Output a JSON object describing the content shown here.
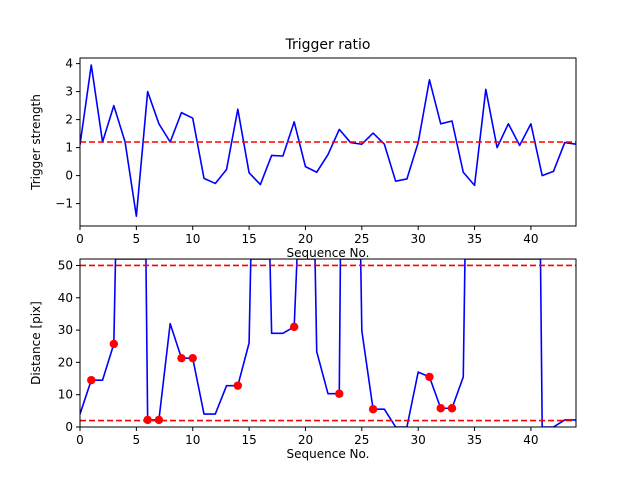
{
  "chart_data": [
    {
      "type": "line",
      "title": "Trigger ratio",
      "xlabel": "Sequence No.",
      "ylabel": "Trigger strength",
      "xlim": [
        0,
        44
      ],
      "ylim": [
        -1.8,
        4.2
      ],
      "xticks": [
        0,
        5,
        10,
        15,
        20,
        25,
        30,
        35,
        40
      ],
      "yticks": [
        -1,
        0,
        1,
        2,
        3,
        4
      ],
      "grid": false,
      "series": [
        {
          "color": "#0000ff",
          "style": "solid",
          "x": [
            0,
            1,
            2,
            3,
            4,
            5,
            6,
            7,
            8,
            9,
            10,
            11,
            12,
            13,
            14,
            15,
            16,
            17,
            18,
            19,
            20,
            21,
            22,
            23,
            24,
            25,
            26,
            27,
            28,
            29,
            30,
            31,
            32,
            33,
            34,
            35,
            36,
            37,
            38,
            39,
            40,
            41,
            42,
            43,
            44
          ],
          "y": [
            1.1,
            3.95,
            1.2,
            2.5,
            1.2,
            -1.45,
            3.0,
            1.85,
            1.2,
            2.25,
            2.05,
            -0.1,
            -0.28,
            0.22,
            2.37,
            0.1,
            -0.32,
            0.72,
            0.7,
            1.92,
            0.32,
            0.12,
            0.75,
            1.65,
            1.18,
            1.12,
            1.52,
            1.12,
            -0.2,
            -0.12,
            1.18,
            3.42,
            1.85,
            1.95,
            0.12,
            -0.35,
            3.08,
            1.0,
            1.85,
            1.08,
            1.85,
            0.0,
            0.15,
            1.18,
            1.12
          ]
        }
      ],
      "hlines": [
        {
          "y": 1.2,
          "color": "#ff0000",
          "style": "dashed"
        }
      ]
    },
    {
      "type": "line",
      "title": "",
      "xlabel": "Sequence No.",
      "ylabel": "Distance [pix]",
      "xlim": [
        0,
        44
      ],
      "ylim": [
        0,
        52
      ],
      "xticks": [
        0,
        5,
        10,
        15,
        20,
        25,
        30,
        35,
        40
      ],
      "yticks": [
        0,
        10,
        20,
        30,
        40,
        50
      ],
      "grid": false,
      "series": [
        {
          "color": "#0000ff",
          "style": "solid",
          "x": [
            0,
            1,
            2,
            3,
            3.15,
            5.85,
            6,
            7,
            8,
            9,
            10,
            11,
            12,
            13,
            14,
            15,
            15.15,
            16.85,
            17,
            18,
            19,
            19.25,
            20.85,
            21,
            22,
            23,
            23.1,
            24.9,
            25,
            26,
            27,
            28,
            29,
            30,
            31,
            32,
            33,
            34,
            34.15,
            40.85,
            41,
            42,
            43,
            44
          ],
          "y": [
            4,
            14.5,
            14.5,
            25.7,
            52,
            52,
            2.2,
            2.2,
            32,
            21.3,
            21.3,
            4,
            4,
            12.8,
            12.8,
            26,
            52,
            52,
            29,
            29,
            31,
            52,
            52,
            23.3,
            10.3,
            10.3,
            52,
            52,
            29.8,
            5.5,
            5.5,
            0,
            0,
            17,
            15.5,
            5.8,
            5.8,
            15.5,
            52,
            52,
            0,
            0,
            2.2,
            2.2
          ]
        }
      ],
      "markers": {
        "color": "#ff0000",
        "x": [
          1,
          3,
          6,
          7,
          9,
          10,
          14,
          19,
          23,
          26,
          31,
          32,
          33
        ],
        "y": [
          14.5,
          25.7,
          2.2,
          2.2,
          21.3,
          21.3,
          12.8,
          31,
          10.3,
          5.5,
          15.5,
          5.8,
          5.8
        ]
      },
      "hlines": [
        {
          "y": 50,
          "color": "#ff0000",
          "style": "dashed"
        },
        {
          "y": 2,
          "color": "#ff0000",
          "style": "dashed"
        }
      ]
    }
  ]
}
